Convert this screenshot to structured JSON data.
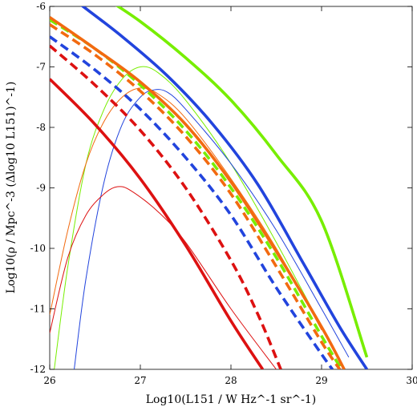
{
  "chart_data": {
    "type": "line",
    "xlabel": "Log10(L151 / W Hz^-1 sr^-1)",
    "ylabel": "Log10(ρ / Mpc^-3 (Δlog10 L151)^-1)",
    "xlim": [
      26,
      30
    ],
    "ylim": [
      -12,
      -6
    ],
    "x_ticks": [
      "26",
      "27",
      "28",
      "29",
      "30"
    ],
    "y_ticks": [
      "-6",
      "-7",
      "-8",
      "-9",
      "-10",
      "-11",
      "-12"
    ],
    "grid": false,
    "colors": {
      "green": "#77ee00",
      "blue": "#2244dd",
      "orange": "#f26a10",
      "red": "#dd1111"
    },
    "series": [
      {
        "color": "green",
        "style": "thick-solid",
        "x": [
          26.6,
          27.0,
          27.5,
          28.0,
          28.5,
          29.0,
          29.5
        ],
        "y": [
          -5.85,
          -6.25,
          -6.85,
          -7.55,
          -8.45,
          -9.55,
          -11.8
        ]
      },
      {
        "color": "blue",
        "style": "thick-solid",
        "x": [
          26.35,
          26.8,
          27.3,
          27.8,
          28.3,
          28.8,
          29.2,
          29.5
        ],
        "y": [
          -5.98,
          -6.5,
          -7.15,
          -7.95,
          -8.95,
          -10.25,
          -11.3,
          -12.0
        ]
      },
      {
        "color": "orange",
        "style": "thick-solid",
        "x": [
          26.0,
          26.5,
          27.0,
          27.5,
          28.0,
          28.5,
          29.0,
          29.25
        ],
        "y": [
          -6.18,
          -6.7,
          -7.25,
          -7.95,
          -8.9,
          -10.05,
          -11.3,
          -12.0
        ]
      },
      {
        "color": "green",
        "style": "thick-dashed",
        "x": [
          26.0,
          26.5,
          27.0,
          27.5,
          28.0,
          28.5,
          29.0,
          29.22
        ],
        "y": [
          -6.22,
          -6.7,
          -7.3,
          -8.05,
          -9.0,
          -10.15,
          -11.45,
          -12.0
        ]
      },
      {
        "color": "orange",
        "style": "thick-dashed",
        "x": [
          26.0,
          26.5,
          27.0,
          27.5,
          28.0,
          28.5,
          29.0,
          29.2
        ],
        "y": [
          -6.3,
          -6.8,
          -7.4,
          -8.15,
          -9.1,
          -10.3,
          -11.55,
          -12.0
        ]
      },
      {
        "color": "blue",
        "style": "thick-dashed",
        "x": [
          26.0,
          26.5,
          27.0,
          27.5,
          28.0,
          28.5,
          29.0,
          29.12
        ],
        "y": [
          -6.5,
          -7.05,
          -7.7,
          -8.5,
          -9.45,
          -10.65,
          -11.75,
          -12.0
        ]
      },
      {
        "color": "red",
        "style": "thick-dashed",
        "x": [
          26.0,
          26.5,
          27.0,
          27.5,
          28.0,
          28.3,
          28.55
        ],
        "y": [
          -6.65,
          -7.3,
          -8.05,
          -9.0,
          -10.2,
          -11.1,
          -12.0
        ]
      },
      {
        "color": "red",
        "style": "thick-solid",
        "x": [
          26.0,
          26.5,
          27.0,
          27.5,
          28.0,
          28.35
        ],
        "y": [
          -7.2,
          -7.95,
          -8.85,
          -9.95,
          -11.2,
          -12.0
        ]
      },
      {
        "color": "green",
        "style": "thin-solid",
        "x": [
          26.05,
          26.2,
          26.4,
          26.6,
          26.8,
          27.0,
          27.2,
          27.5,
          28.0,
          28.5,
          29.0
        ],
        "y": [
          -12.0,
          -10.3,
          -8.6,
          -7.7,
          -7.2,
          -7.0,
          -7.1,
          -7.55,
          -8.6,
          -9.9,
          -11.3
        ]
      },
      {
        "color": "orange",
        "style": "thin-solid",
        "x": [
          26.0,
          26.2,
          26.4,
          26.6,
          26.8,
          27.0,
          27.2,
          27.5,
          28.0,
          28.5,
          29.0
        ],
        "y": [
          -11.1,
          -9.7,
          -8.6,
          -7.9,
          -7.5,
          -7.35,
          -7.45,
          -7.85,
          -8.85,
          -10.0,
          -11.35
        ]
      },
      {
        "color": "blue",
        "style": "thin-solid",
        "x": [
          26.27,
          26.4,
          26.6,
          26.8,
          27.0,
          27.15,
          27.3,
          27.5,
          28.0,
          28.5,
          29.0,
          29.3
        ],
        "y": [
          -12.0,
          -10.5,
          -8.9,
          -7.95,
          -7.5,
          -7.38,
          -7.42,
          -7.7,
          -8.6,
          -9.7,
          -11.0,
          -11.8
        ]
      },
      {
        "color": "red",
        "style": "thin-solid",
        "x": [
          26.0,
          26.2,
          26.4,
          26.6,
          26.75,
          26.9,
          27.2,
          27.5,
          28.0,
          28.5
        ],
        "y": [
          -11.4,
          -10.15,
          -9.45,
          -9.1,
          -8.98,
          -9.05,
          -9.4,
          -9.9,
          -11.0,
          -12.0
        ]
      }
    ]
  }
}
